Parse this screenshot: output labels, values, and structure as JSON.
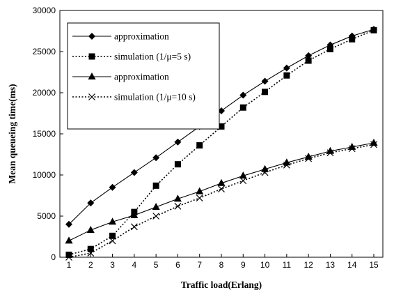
{
  "chart_data": {
    "type": "line",
    "title": "",
    "xlabel": "Traffic load(Erlang)",
    "ylabel": "Mean queueing time(ms)",
    "x": [
      1,
      2,
      3,
      4,
      5,
      6,
      7,
      8,
      9,
      10,
      11,
      12,
      13,
      14,
      15
    ],
    "xlim": [
      1,
      15
    ],
    "ylim": [
      0,
      30000
    ],
    "x_ticks": [
      "1",
      "2",
      "3",
      "4",
      "5",
      "6",
      "7",
      "8",
      "9",
      "10",
      "11",
      "12",
      "13",
      "14",
      "15"
    ],
    "y_ticks": [
      "0",
      "5000",
      "10000",
      "15000",
      "20000",
      "25000",
      "30000"
    ],
    "grid": false,
    "legend_position": "top-left",
    "series": [
      {
        "name": "approximation",
        "marker": "diamond",
        "line": "solid",
        "color": "#000000",
        "values": [
          4000,
          6600,
          8500,
          10300,
          12100,
          14000,
          15900,
          17800,
          19700,
          21400,
          23000,
          24500,
          25800,
          26900,
          27700
        ]
      },
      {
        "name": "simulation  (1/μ=5 s)",
        "marker": "square",
        "line": "dotted",
        "color": "#000000",
        "values": [
          300,
          1000,
          2600,
          5500,
          8700,
          11300,
          13600,
          15900,
          18200,
          20100,
          22100,
          23900,
          25300,
          26500,
          27600
        ]
      },
      {
        "name": "approximation",
        "marker": "triangle",
        "line": "solid",
        "color": "#000000",
        "values": [
          2000,
          3300,
          4300,
          5100,
          6100,
          7100,
          8000,
          9000,
          9900,
          10700,
          11500,
          12200,
          12900,
          13400,
          13900
        ]
      },
      {
        "name": "simulation  (1/μ=10 s)",
        "marker": "x",
        "line": "dotted",
        "color": "#000000",
        "values": [
          0,
          500,
          2000,
          3700,
          5000,
          6200,
          7200,
          8300,
          9300,
          10300,
          11200,
          12000,
          12700,
          13200,
          13700
        ]
      }
    ]
  }
}
